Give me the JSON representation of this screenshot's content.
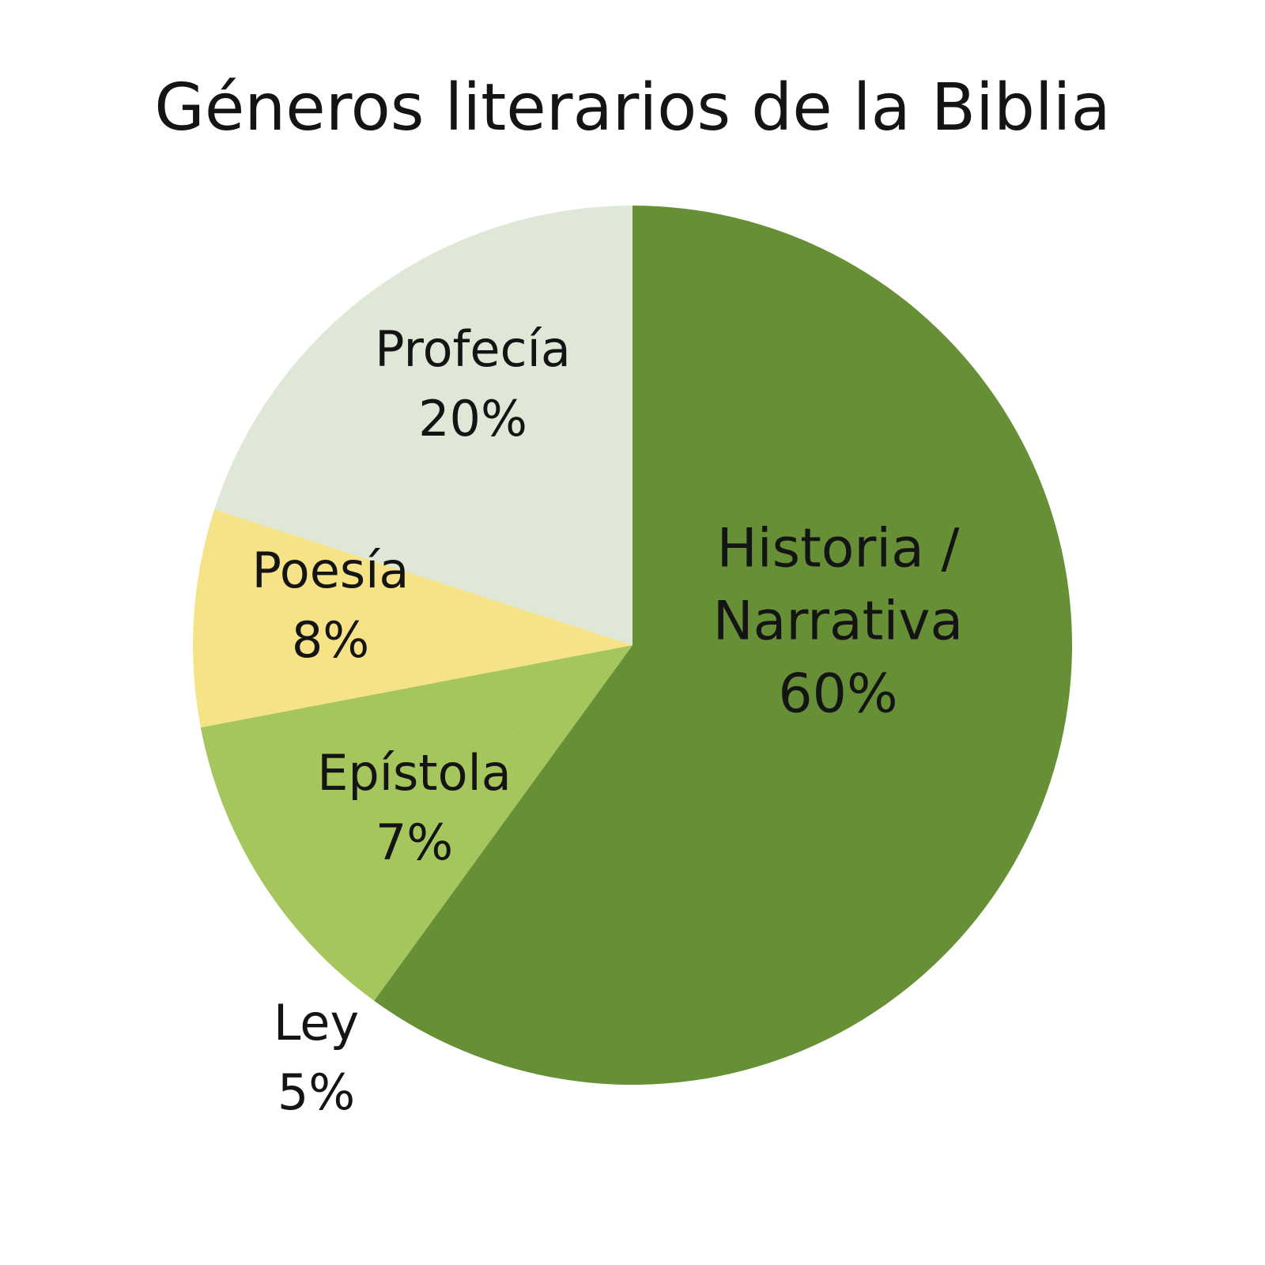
{
  "chart_data": {
    "type": "pie",
    "title": "Géneros literarios de la Biblia",
    "start_angle_deg": 0,
    "direction": "clockwise",
    "slices": [
      {
        "name": "Historia / Narrativa",
        "name_lines": [
          "Historia /",
          "Narrativa"
        ],
        "value": 60,
        "value_label": "60%",
        "color": "#678f35"
      },
      {
        "name": "Ley",
        "name_lines": [
          "Ley"
        ],
        "value": 5,
        "value_label": "5%",
        "color": "#a4c65c"
      },
      {
        "name": "Epístola",
        "name_lines": [
          "Epístola"
        ],
        "value": 7,
        "value_label": "7%",
        "color": "#a4c65c"
      },
      {
        "name": "Poesía",
        "name_lines": [
          "Poesía"
        ],
        "value": 8,
        "value_label": "8%",
        "color": "#f6e287"
      },
      {
        "name": "Profecía",
        "name_lines": [
          "Profecía"
        ],
        "value": 20,
        "value_label": "20%",
        "color": "#dfe8d6"
      }
    ],
    "label_placement": {
      "Ley": "outside"
    }
  }
}
